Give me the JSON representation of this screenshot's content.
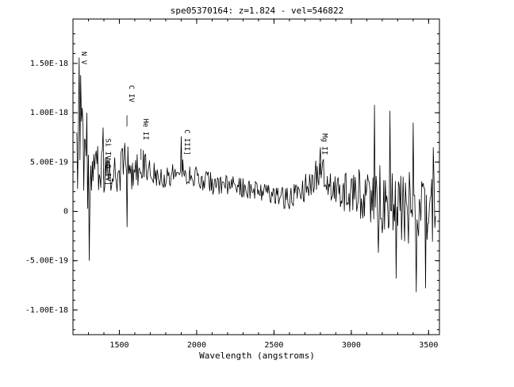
{
  "chart_data": {
    "type": "line",
    "title": "spe05370164: z=1.824 - vel=546822",
    "xlabel": "Wavelength (angstroms)",
    "ylabel": "",
    "xlim": [
      1200,
      3570
    ],
    "ylim": [
      -1.25e-18,
      1.95e-18
    ],
    "x_ticks": [
      1500,
      2000,
      2500,
      3000,
      3500
    ],
    "x_tick_labels": [
      "1500",
      "2000",
      "2500",
      "3000",
      "3500"
    ],
    "y_ticks": [
      1.5e-18,
      1e-18,
      5e-19,
      0,
      -5e-19,
      -1e-18
    ],
    "y_tick_labels": [
      "1.50E-18",
      "1.00E-18",
      "5.00E-19",
      "0",
      "-5.00E-19",
      "-1.00E-18"
    ],
    "grid": false,
    "line_labels": [
      {
        "label": "N V",
        "x": 1240,
        "y": 1.62e-18
      },
      {
        "label": "Si IV+O IV]",
        "x": 1398,
        "y": 7.4e-19
      },
      {
        "label": "C IV",
        "x": 1549,
        "y": 1.28e-18
      },
      {
        "label": "He II",
        "x": 1640,
        "y": 9.4e-19
      },
      {
        "label": "C III]",
        "x": 1909,
        "y": 8.3e-19
      },
      {
        "label": "Mg II",
        "x": 2798,
        "y": 7.9e-19
      }
    ],
    "series": [
      {
        "color": "#000000",
        "spectrum": {
          "x_start": 1225,
          "x_step": 5,
          "keypoints": [
            [
              1225,
              4e-19
            ],
            [
              1240,
              6.5e-19
            ],
            [
              1270,
              5.5e-19
            ],
            [
              1300,
              2.8e-19
            ],
            [
              1330,
              3.5e-19
            ],
            [
              1370,
              4e-19
            ],
            [
              1400,
              4.5e-19
            ],
            [
              1450,
              3e-19
            ],
            [
              1500,
              3.5e-19
            ],
            [
              1549,
              6e-19
            ],
            [
              1580,
              3e-19
            ],
            [
              1640,
              4.8e-19
            ],
            [
              1700,
              4.3e-19
            ],
            [
              1800,
              3.6e-19
            ],
            [
              1909,
              4.2e-19
            ],
            [
              2000,
              3.3e-19
            ],
            [
              2100,
              2.8e-19
            ],
            [
              2200,
              2.6e-19
            ],
            [
              2300,
              2.4e-19
            ],
            [
              2400,
              2.1e-19
            ],
            [
              2500,
              1.8e-19
            ],
            [
              2600,
              1.2e-19
            ],
            [
              2700,
              2.4e-19
            ],
            [
              2798,
              4e-19
            ],
            [
              2900,
              2.2e-19
            ],
            [
              3000,
              1.8e-19
            ],
            [
              3100,
              1.5e-19
            ],
            [
              3200,
              1.2e-19
            ],
            [
              3300,
              6e-20
            ],
            [
              3400,
              1e-20
            ],
            [
              3500,
              0.0
            ],
            [
              3545,
              0.0
            ]
          ],
          "noise_keypoints": [
            [
              1225,
              4.5e-19
            ],
            [
              1320,
              3.2e-19
            ],
            [
              1500,
              2.2e-19
            ],
            [
              1700,
              1.5e-19
            ],
            [
              2000,
              1.2e-19
            ],
            [
              2300,
              1e-19
            ],
            [
              2500,
              1e-19
            ],
            [
              2650,
              1.3e-19
            ],
            [
              2900,
              2e-19
            ],
            [
              3100,
              3.2e-19
            ],
            [
              3300,
              3.8e-19
            ],
            [
              3545,
              4.2e-19
            ]
          ],
          "spikes": [
            [
              1238,
              1.56e-18
            ],
            [
              1252,
              1.38e-18
            ],
            [
              1262,
              1.05e-18
            ],
            [
              1292,
              1e-18
            ],
            [
              1305,
              -5e-19
            ],
            [
              1395,
              8.5e-19
            ],
            [
              1550,
              1.15e-18
            ],
            [
              1552,
              -1.6e-19
            ],
            [
              1900,
              7.6e-19
            ],
            [
              2800,
              6.5e-19
            ],
            [
              3150,
              1.08e-18
            ],
            [
              3175,
              -4.2e-19
            ],
            [
              3250,
              1.02e-18
            ],
            [
              3290,
              -6.8e-19
            ],
            [
              3400,
              9e-19
            ],
            [
              3420,
              -8.2e-19
            ],
            [
              3480,
              -7.8e-19
            ],
            [
              3530,
              6.5e-19
            ]
          ]
        }
      }
    ]
  }
}
